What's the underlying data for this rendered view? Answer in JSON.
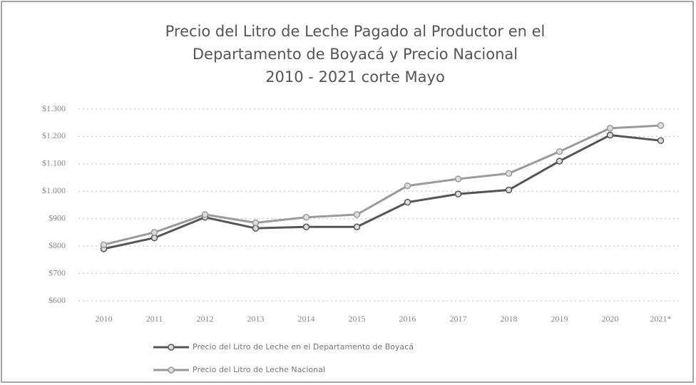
{
  "chart_data": {
    "type": "line",
    "title": [
      "Precio del Litro de Leche Pagado al Productor en el",
      "Departamento de Boyacá y Precio Nacional",
      "2010 - 2021 corte Mayo"
    ],
    "categories": [
      "2010",
      "2011",
      "2012",
      "2013",
      "2014",
      "2015",
      "2016",
      "2017",
      "2018",
      "2019",
      "2020",
      "2021*"
    ],
    "series": [
      {
        "name": "Precio del Litro de Leche  en el  Departamento de Boyacá",
        "color": "#555555",
        "values": [
          790,
          830,
          905,
          865,
          870,
          870,
          960,
          990,
          1005,
          1110,
          1205,
          1185
        ]
      },
      {
        "name": "Precio del Litro de Leche  Nacional",
        "color": "#9a9a9a",
        "values": [
          805,
          850,
          915,
          885,
          905,
          915,
          1020,
          1045,
          1065,
          1145,
          1230,
          1240
        ]
      }
    ],
    "ylim": [
      600,
      1300
    ],
    "yticks": [
      {
        "value": 600,
        "label": "$600"
      },
      {
        "value": 700,
        "label": "$700"
      },
      {
        "value": 800,
        "label": "$800"
      },
      {
        "value": 900,
        "label": "$900"
      },
      {
        "value": 1000,
        "label": "$1.000"
      },
      {
        "value": 1100,
        "label": "$1.100"
      },
      {
        "value": 1200,
        "label": "$1.200"
      },
      {
        "value": 1300,
        "label": "$1.300"
      }
    ],
    "grid": true,
    "legend": "bottom"
  }
}
